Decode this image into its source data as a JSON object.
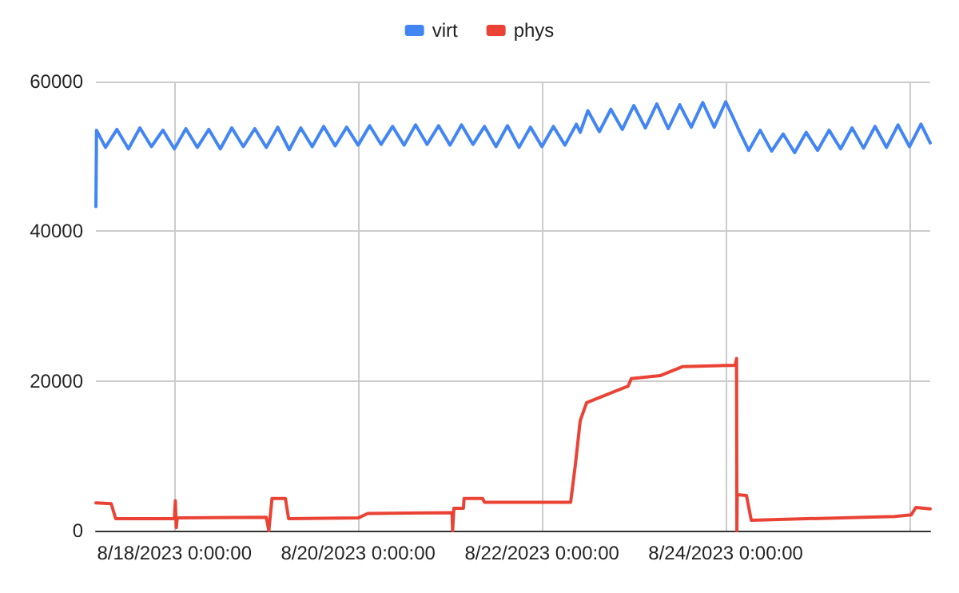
{
  "chart_data": {
    "type": "line",
    "legend": "top",
    "grid": true,
    "marker": "none",
    "line_style": "solid",
    "xlim": [
      "2023-08-17T03:30",
      "2023-08-26T05:25"
    ],
    "xticks": [
      {
        "value": "2023-08-18T00:00",
        "label": "8/18/2023 0:00:00"
      },
      {
        "value": "2023-08-20T00:00",
        "label": "8/20/2023 0:00:00"
      },
      {
        "value": "2023-08-22T00:00",
        "label": "8/22/2023 0:00:00"
      },
      {
        "value": "2023-08-24T00:00",
        "label": "8/24/2023 0:00:00"
      },
      {
        "value": "2023-08-26T00:00",
        "label": null
      }
    ],
    "ylim": [
      0,
      60000
    ],
    "yticks": [
      0,
      20000,
      40000,
      60000
    ],
    "series": [
      {
        "name": "virt",
        "color": "#4285f4",
        "x": [
          "2023-08-17T03:30",
          "2023-08-17T03:40",
          "2023-08-17T06:00",
          "2023-08-17T09:00",
          "2023-08-17T12:00",
          "2023-08-17T15:00",
          "2023-08-17T18:00",
          "2023-08-17T21:00",
          "2023-08-18T00:00",
          "2023-08-18T03:00",
          "2023-08-18T06:00",
          "2023-08-18T09:00",
          "2023-08-18T12:00",
          "2023-08-18T15:00",
          "2023-08-18T18:00",
          "2023-08-18T21:00",
          "2023-08-19T00:00",
          "2023-08-19T03:00",
          "2023-08-19T06:00",
          "2023-08-19T09:00",
          "2023-08-19T12:00",
          "2023-08-19T15:00",
          "2023-08-19T18:00",
          "2023-08-19T21:00",
          "2023-08-20T00:00",
          "2023-08-20T03:00",
          "2023-08-20T06:00",
          "2023-08-20T09:00",
          "2023-08-20T12:00",
          "2023-08-20T15:00",
          "2023-08-20T18:00",
          "2023-08-20T21:00",
          "2023-08-21T00:00",
          "2023-08-21T03:00",
          "2023-08-21T06:00",
          "2023-08-21T09:00",
          "2023-08-21T12:00",
          "2023-08-21T15:00",
          "2023-08-21T18:00",
          "2023-08-21T21:00",
          "2023-08-22T00:00",
          "2023-08-22T03:00",
          "2023-08-22T06:00",
          "2023-08-22T09:00",
          "2023-08-22T10:00",
          "2023-08-22T12:00",
          "2023-08-22T15:00",
          "2023-08-22T18:00",
          "2023-08-22T21:00",
          "2023-08-23T00:00",
          "2023-08-23T03:00",
          "2023-08-23T06:00",
          "2023-08-23T09:00",
          "2023-08-23T12:00",
          "2023-08-23T15:00",
          "2023-08-23T18:00",
          "2023-08-23T21:00",
          "2023-08-24T00:00",
          "2023-08-24T02:50",
          "2023-08-24T03:10",
          "2023-08-24T06:00",
          "2023-08-24T09:00",
          "2023-08-24T12:00",
          "2023-08-24T15:00",
          "2023-08-24T18:00",
          "2023-08-24T21:00",
          "2023-08-25T00:00",
          "2023-08-25T03:00",
          "2023-08-25T06:00",
          "2023-08-25T09:00",
          "2023-08-25T12:00",
          "2023-08-25T15:00",
          "2023-08-25T18:00",
          "2023-08-25T21:00",
          "2023-08-26T00:00",
          "2023-08-26T03:00",
          "2023-08-26T05:25"
        ],
        "values": [
          43300,
          53500,
          51200,
          53600,
          51000,
          53800,
          51300,
          53500,
          51000,
          53700,
          51200,
          53600,
          51000,
          53800,
          51300,
          53700,
          51200,
          53900,
          50900,
          53800,
          51300,
          54000,
          51400,
          53900,
          51500,
          54100,
          51600,
          54000,
          51500,
          54200,
          51600,
          54100,
          51500,
          54200,
          51600,
          54000,
          51300,
          54100,
          51200,
          53900,
          51300,
          54000,
          51500,
          54300,
          53200,
          56100,
          53300,
          56300,
          53600,
          56800,
          53800,
          57000,
          53700,
          56900,
          53900,
          57200,
          53900,
          57300,
          54200,
          53800,
          50800,
          53500,
          50700,
          53000,
          50500,
          53200,
          50800,
          53500,
          51000,
          53800,
          51100,
          54000,
          51200,
          54200,
          51300,
          54300,
          51800
        ]
      },
      {
        "name": "phys",
        "color": "#ea4335",
        "x": [
          "2023-08-17T03:30",
          "2023-08-17T07:30",
          "2023-08-17T08:40",
          "2023-08-18T00:00",
          "2023-08-18T00:15",
          "2023-08-18T00:30",
          "2023-08-18T00:45",
          "2023-08-19T00:00",
          "2023-08-19T00:40",
          "2023-08-19T01:30",
          "2023-08-19T05:00",
          "2023-08-19T05:50",
          "2023-08-20T00:00",
          "2023-08-20T02:30",
          "2023-08-21T00:30",
          "2023-08-21T00:40",
          "2023-08-21T01:00",
          "2023-08-21T03:30",
          "2023-08-21T03:40",
          "2023-08-21T08:30",
          "2023-08-21T09:00",
          "2023-08-22T07:30",
          "2023-08-22T08:45",
          "2023-08-22T10:00",
          "2023-08-22T11:40",
          "2023-08-22T17:00",
          "2023-08-22T22:30",
          "2023-08-22T23:20",
          "2023-08-23T06:50",
          "2023-08-23T12:40",
          "2023-08-24T02:30",
          "2023-08-24T02:50",
          "2023-08-24T02:55",
          "2023-08-24T03:00",
          "2023-08-24T05:25",
          "2023-08-24T06:40",
          "2023-08-25T20:10",
          "2023-08-26T00:25",
          "2023-08-26T01:40",
          "2023-08-26T05:25"
        ],
        "values": [
          3700,
          3600,
          1600,
          1600,
          4000,
          400,
          1700,
          1800,
          0,
          4300,
          4300,
          1600,
          1700,
          2300,
          2400,
          0,
          3000,
          3000,
          4300,
          4300,
          3800,
          3800,
          8900,
          14700,
          17100,
          18200,
          19300,
          20300,
          20700,
          21900,
          22100,
          23000,
          0,
          4800,
          4700,
          1400,
          1900,
          2100,
          3100,
          2900
        ]
      }
    ]
  }
}
